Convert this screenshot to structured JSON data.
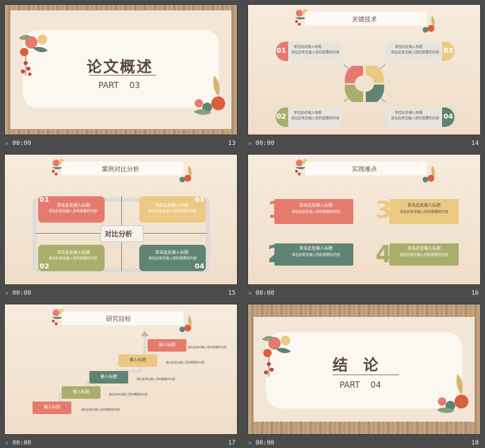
{
  "colors": {
    "red": "#e57b6e",
    "yellow": "#ecc983",
    "green": "#a9ae6a",
    "teal": "#5f8473",
    "gray": "#d9d6d2",
    "text": "#5c4a42"
  },
  "slides": [
    {
      "num": "13",
      "time": "00:00",
      "title": "论文概述",
      "part": "PART",
      "part_no": "03"
    },
    {
      "num": "14",
      "time": "00:00",
      "title": "关键技术",
      "items": [
        {
          "n": "01",
          "head": "单击此处输入标题",
          "body": "请在此单击输入您的需要的内容"
        },
        {
          "n": "03",
          "head": "单击此处输入标题",
          "body": "请在此单击输入您的需要的内容"
        },
        {
          "n": "02",
          "head": "单击此处输入标题",
          "body": "请在此单击输入您的需要的内容"
        },
        {
          "n": "04",
          "head": "单击此处输入标题",
          "body": "请在此单击输入您的需要的内容"
        }
      ]
    },
    {
      "num": "15",
      "time": "00:00",
      "title": "案例对比分析",
      "center": "对比分析",
      "items": [
        {
          "n": "01",
          "head": "单击此处输入标题",
          "body": "请在此单击输入您的需要的内容"
        },
        {
          "n": "03",
          "head": "单击此处输入标题",
          "body": "请在此单击输入您的需要的内容"
        },
        {
          "n": "02",
          "head": "单击此处输入标题",
          "body": "请在此单击输入您的需要的内容"
        },
        {
          "n": "04",
          "head": "单击此处输入标题",
          "body": "请在此单击输入您的需要的内容"
        }
      ]
    },
    {
      "num": "16",
      "time": "00:00",
      "title": "实践难点",
      "items": [
        {
          "n": "1",
          "head": "单击此处输入标题",
          "body": "请在此单击输入您的需要的内容"
        },
        {
          "n": "3",
          "head": "单击此处输入标题",
          "body": "请在此单击输入您的需要的内容"
        },
        {
          "n": "2",
          "head": "单击此处输入标题",
          "body": "请在此单击输入您的需要的内容"
        },
        {
          "n": "4",
          "head": "单击此处输入标题",
          "body": "请在此单击输入您的需要的内容"
        }
      ]
    },
    {
      "num": "17",
      "time": "00:00",
      "title": "研究目标",
      "steps": [
        {
          "head": "输入标题",
          "body": "请在此单击输入您的需要的内容"
        },
        {
          "head": "输入标题",
          "body": "请在此单击输入您的需要的内容"
        },
        {
          "head": "输入标题",
          "body": "请在此单击输入您的需要的内容"
        },
        {
          "head": "输入标题",
          "body": "请在此单击输入您的需要的内容"
        },
        {
          "head": "输入标题",
          "body": "请在此单击输入您的需要的内容"
        }
      ]
    },
    {
      "num": "18",
      "time": "00:00",
      "title": "结　论",
      "part": "PART",
      "part_no": "04"
    }
  ]
}
